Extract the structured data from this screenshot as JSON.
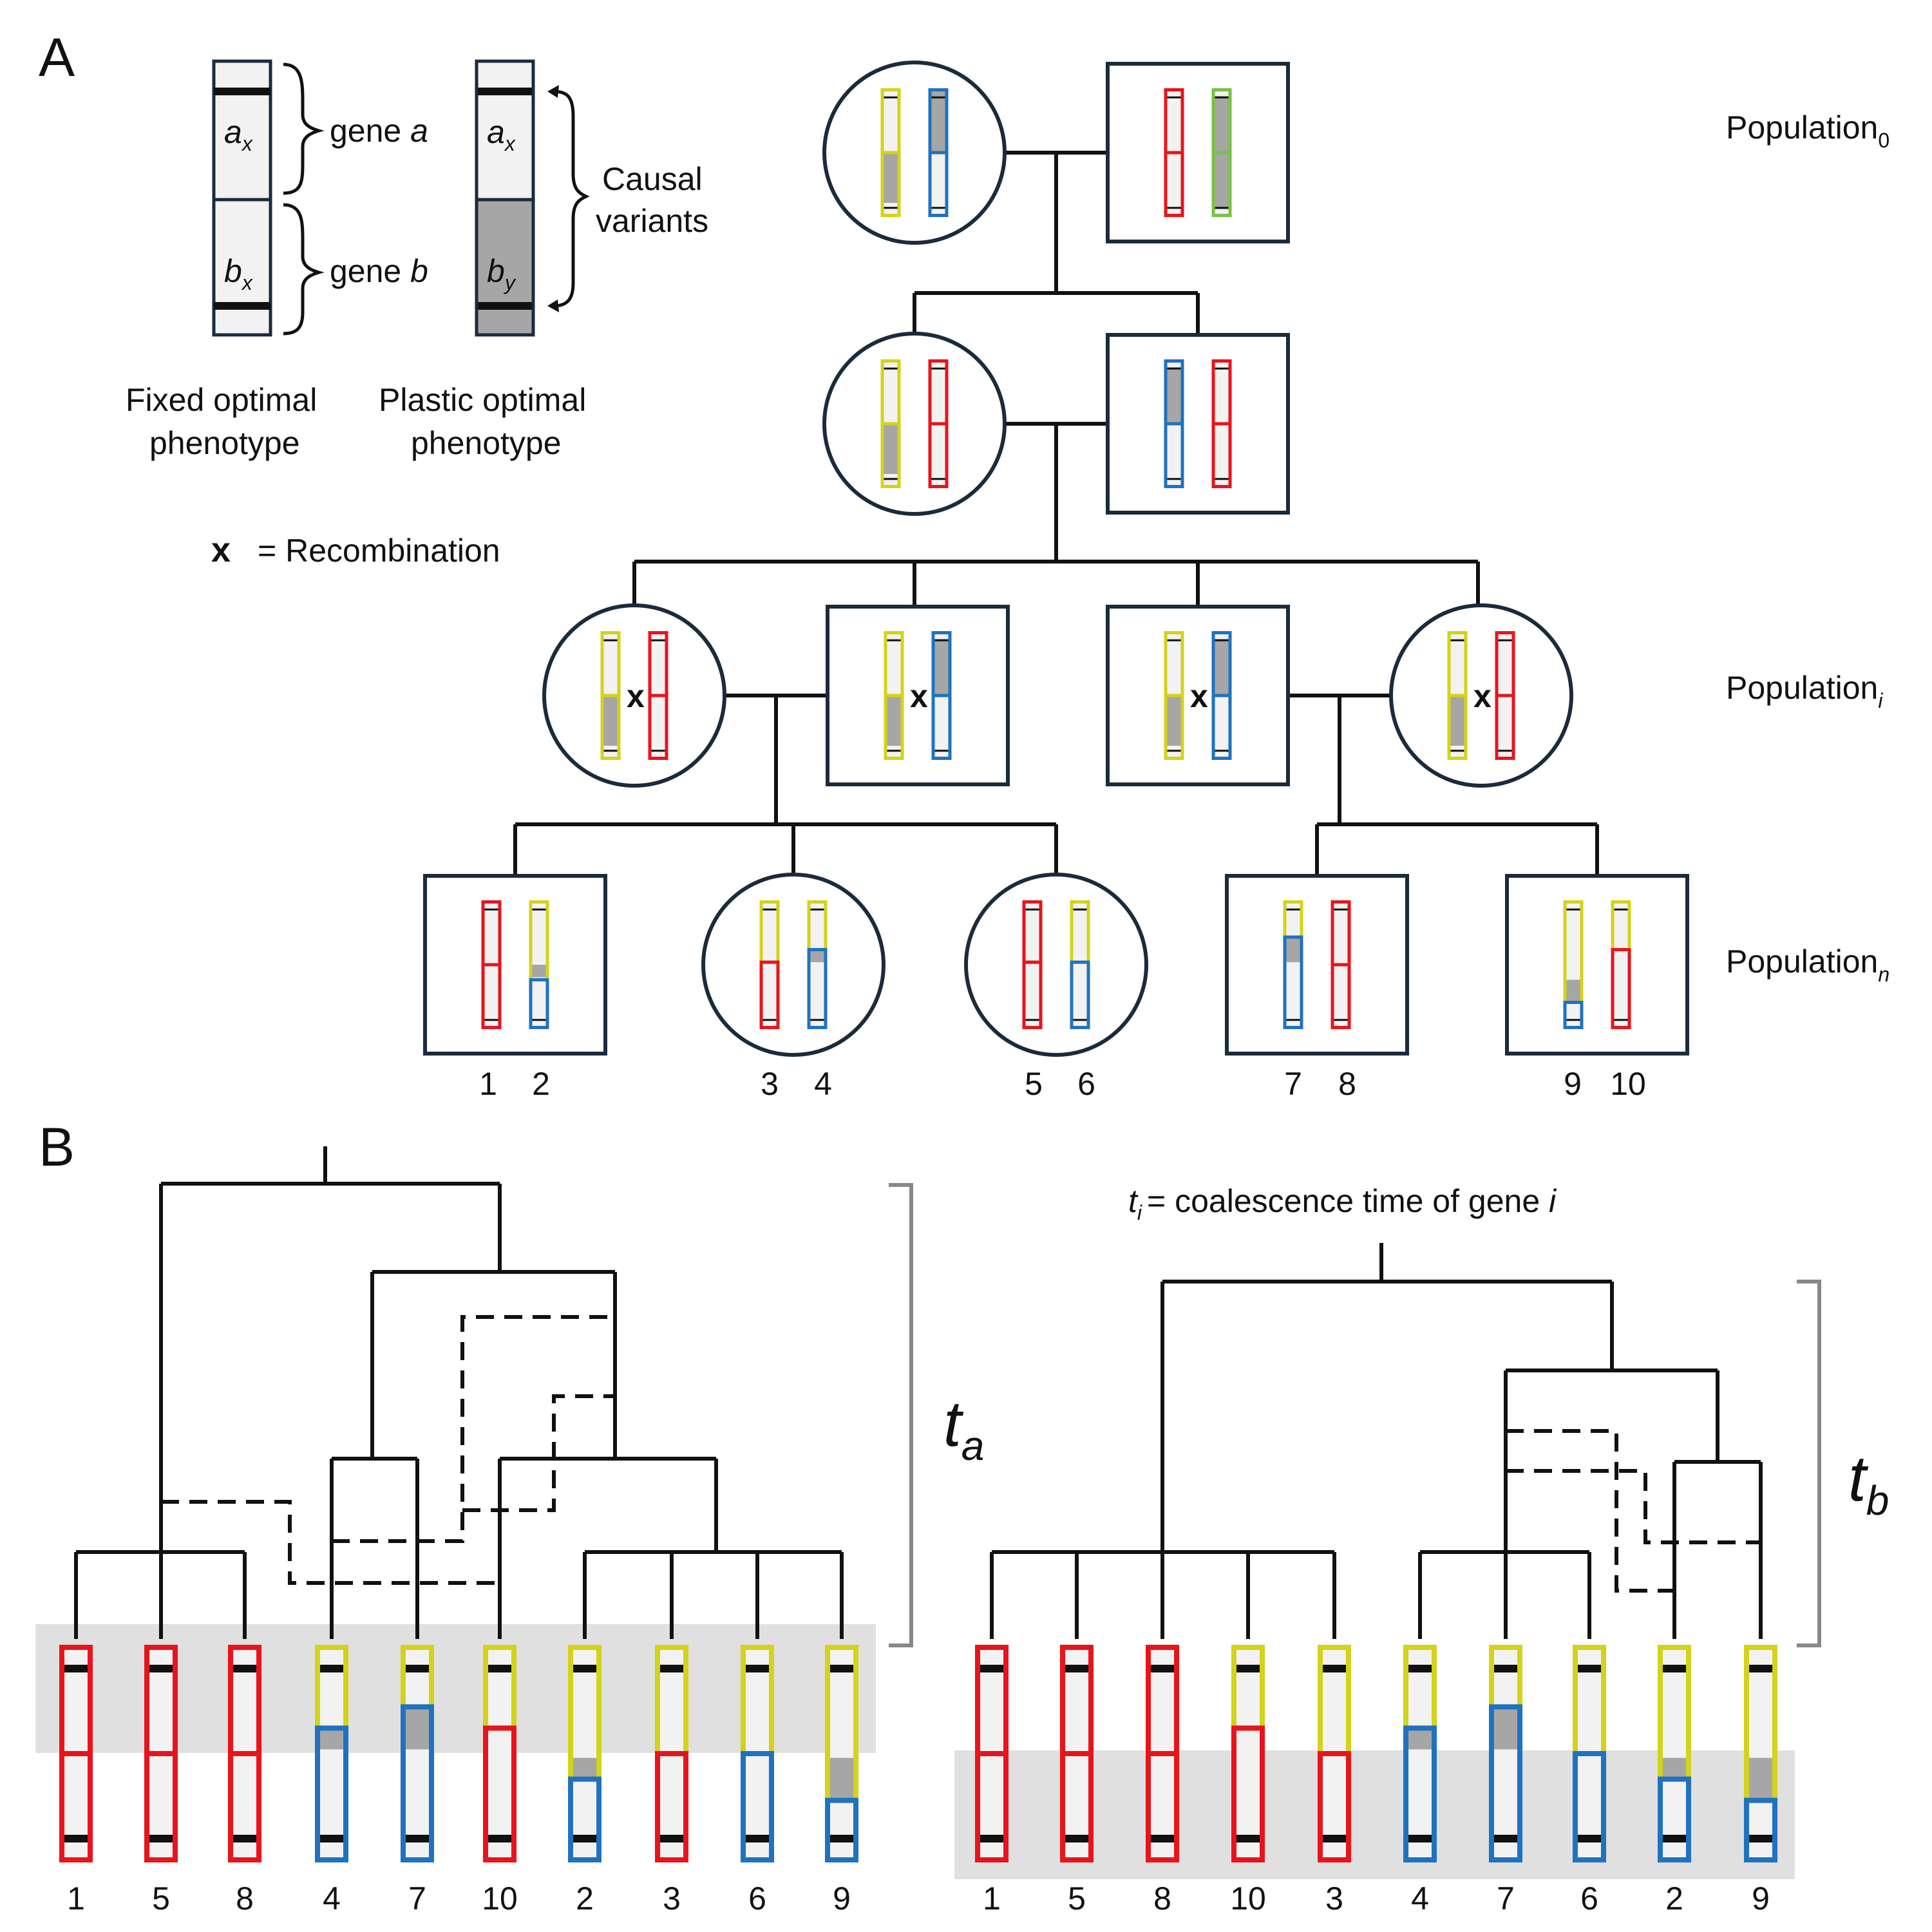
{
  "colors": {
    "red": "#e8141c",
    "yellow": "#d4d21a",
    "blue": "#1f72c0",
    "green": "#7ac143",
    "navy": "#1a2b3c",
    "segment_fill": "#f2f2f2",
    "variant_fill": "#a6a6a6",
    "highlight_band": "#e0e0e0",
    "bracket": "#888888"
  },
  "panel_a": {
    "letter": "A",
    "legend": {
      "allele_a": "a",
      "allele_a_sub": "x",
      "allele_bx": "b",
      "allele_bx_sub": "x",
      "allele_by": "b",
      "allele_by_sub": "y",
      "gene_a": "gene",
      "gene_a_letter": "a",
      "gene_b": "gene",
      "gene_b_letter": "b",
      "causal_line1": "Causal",
      "causal_line2": "variants",
      "fixed_line1": "Fixed optimal",
      "fixed_line2": "phenotype",
      "plastic_line1": "Plastic optimal",
      "plastic_line2": "phenotype",
      "recomb_symbol": "x",
      "recomb_text": "= Recombination"
    },
    "population_labels": [
      {
        "name": "Population",
        "sub": "0"
      },
      {
        "name": "Population",
        "sub": "i"
      },
      {
        "name": "Population",
        "sub": "n"
      }
    ],
    "recomb_marker": "x",
    "offspring_labels": [
      "1",
      "2",
      "3",
      "4",
      "5",
      "6",
      "7",
      "8",
      "9",
      "10"
    ]
  },
  "panel_b": {
    "letter": "B",
    "definition_t": "t",
    "definition_sub": "i",
    "definition_text": "= coalescence time of gene",
    "definition_gene": "i",
    "ta_label": "t",
    "ta_sub": "a",
    "tb_label": "t",
    "tb_sub": "b",
    "tree_a_tips": [
      "1",
      "5",
      "8",
      "4",
      "7",
      "10",
      "2",
      "3",
      "6",
      "9"
    ],
    "tree_b_tips": [
      "1",
      "5",
      "8",
      "10",
      "3",
      "4",
      "7",
      "6",
      "2",
      "9"
    ]
  }
}
